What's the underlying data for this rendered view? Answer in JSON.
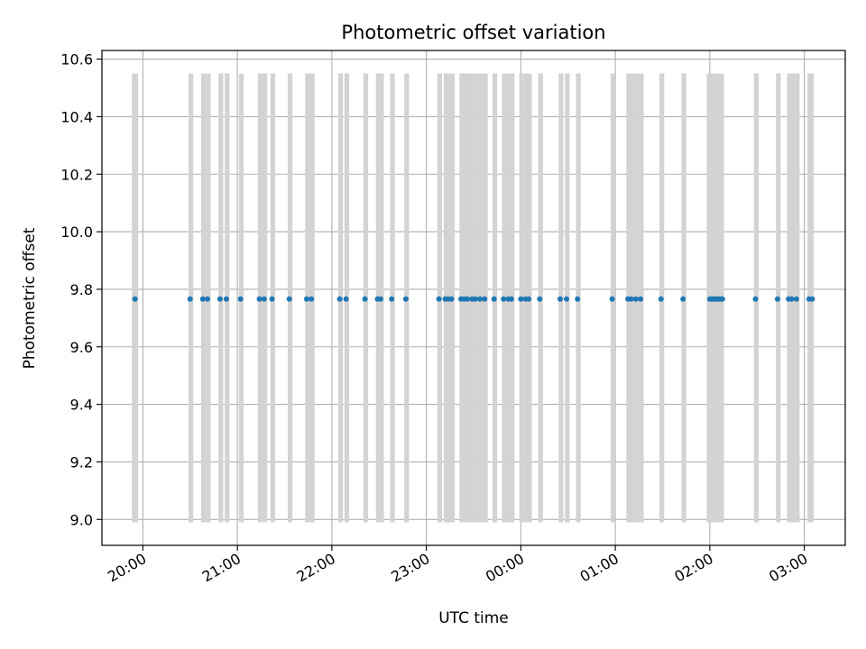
{
  "chart_data": {
    "type": "scatter",
    "title": "Photometric offset variation",
    "xlabel": "UTC time",
    "ylabel": "Photometric offset",
    "grid": true,
    "colors": {
      "point": "#1f77b4",
      "bar": "#d3d3d3",
      "grid": "#b0b0b0"
    },
    "x_axis": {
      "unit": "UTC time (HH:MM)",
      "range": [
        "19:34",
        "03:26"
      ],
      "ticks": [
        "20:00",
        "21:00",
        "22:00",
        "23:00",
        "00:00",
        "01:00",
        "02:00",
        "03:00"
      ]
    },
    "y_axis": {
      "range": [
        8.91,
        10.63
      ],
      "ticks": [
        "9.0",
        "9.2",
        "9.4",
        "9.6",
        "9.8",
        "10.0",
        "10.2",
        "10.4",
        "10.6"
      ]
    },
    "series": [
      {
        "marker": "point",
        "y": 9.766,
        "x": [
          "19:55",
          "20:30",
          "20:38",
          "20:41",
          "20:49",
          "20:53",
          "21:02",
          "21:14",
          "21:17",
          "21:22",
          "21:33",
          "21:44",
          "21:47",
          "22:05",
          "22:09",
          "22:21",
          "22:29",
          "22:31",
          "22:38",
          "22:47",
          "23:08",
          "23:12",
          "23:14",
          "23:16",
          "23:22",
          "23:24",
          "23:26",
          "23:29",
          "23:31",
          "23:34",
          "23:37",
          "23:43",
          "23:49",
          "23:52",
          "23:54",
          "24:00",
          "24:03",
          "24:05",
          "24:12",
          "24:25",
          "24:29",
          "24:36",
          "24:58",
          "25:08",
          "25:10",
          "25:13",
          "25:16",
          "25:29",
          "25:43",
          "26:00",
          "26:01",
          "26:02",
          "26:03",
          "26:04",
          "26:05",
          "26:06",
          "26:07",
          "26:08",
          "26:29",
          "26:43",
          "26:50",
          "26:52",
          "26:55",
          "27:03",
          "27:05"
        ]
      },
      {
        "marker": "bar",
        "y_range": [
          8.99,
          10.55
        ],
        "x_start": [
          "19:53",
          "20:29",
          "20:37",
          "20:40",
          "20:48",
          "20:52",
          "21:01",
          "21:13",
          "21:16",
          "21:21",
          "21:32",
          "21:43",
          "21:46",
          "22:04",
          "22:08",
          "22:20",
          "22:28",
          "22:30",
          "22:37",
          "22:46",
          "23:07",
          "23:11",
          "23:13",
          "23:15",
          "23:21",
          "23:23",
          "23:25",
          "23:28",
          "23:30",
          "23:33",
          "23:36",
          "23:42",
          "23:48",
          "23:51",
          "23:53",
          "23:59",
          "24:02",
          "24:04",
          "24:11",
          "24:24",
          "24:28",
          "24:35",
          "24:57",
          "25:07",
          "25:09",
          "25:12",
          "25:15",
          "25:28",
          "25:42",
          "25:58",
          "26:28",
          "26:42",
          "26:49",
          "26:51",
          "26:54",
          "27:02"
        ],
        "x_end": [
          "19:57",
          "20:32",
          "20:40",
          "20:43",
          "20:51",
          "20:55",
          "21:04",
          "21:16",
          "21:19",
          "21:24",
          "21:35",
          "21:46",
          "21:49",
          "22:07",
          "22:11",
          "22:23",
          "22:31",
          "22:33",
          "22:40",
          "22:49",
          "23:10",
          "23:14",
          "23:16",
          "23:18",
          "23:24",
          "23:26",
          "23:28",
          "23:31",
          "23:33",
          "23:36",
          "23:39",
          "23:45",
          "23:51",
          "23:54",
          "23:56",
          "24:02",
          "24:05",
          "24:07",
          "24:14",
          "24:27",
          "24:31",
          "24:38",
          "25:00",
          "25:10",
          "25:12",
          "25:15",
          "25:18",
          "25:31",
          "25:45",
          "26:09",
          "26:31",
          "26:45",
          "26:52",
          "26:54",
          "26:57",
          "27:06"
        ]
      }
    ]
  }
}
